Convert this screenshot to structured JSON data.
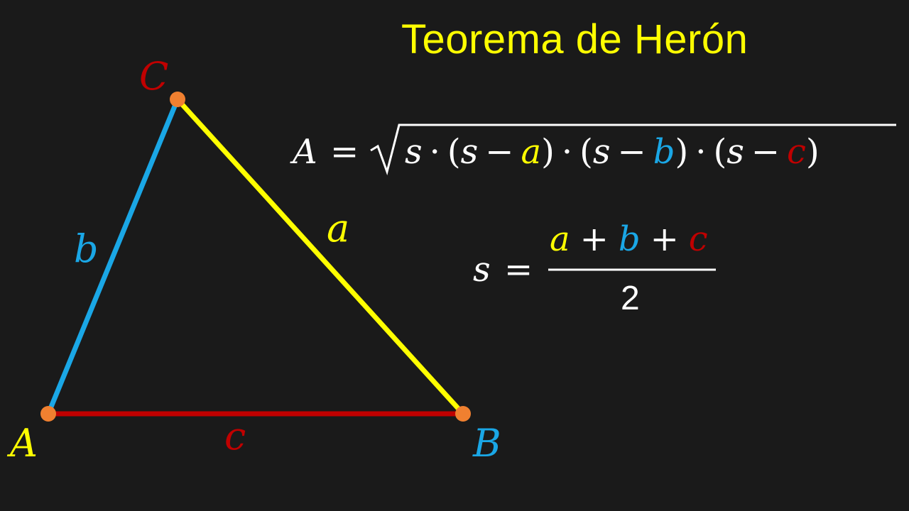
{
  "title": "Teorema de Herón",
  "colors": {
    "background": "#1a1a1a",
    "title": "#ffff00",
    "side_a": "#ffff00",
    "side_b": "#1aa7e6",
    "side_c": "#c00000",
    "vertex_dot": "#f08030",
    "formula_text": "#ffffff"
  },
  "vertices": {
    "A": "A",
    "B": "B",
    "C": "C"
  },
  "sides": {
    "a": "a",
    "b": "b",
    "c": "c"
  },
  "formula_area": {
    "lhs": "A",
    "equals": "=",
    "radicand": {
      "s": "s",
      "dot": "·",
      "open": "(",
      "close": ")",
      "minus": "−"
    }
  },
  "formula_semi": {
    "lhs": "s",
    "equals": "=",
    "plus": "+",
    "denominator": "2"
  }
}
